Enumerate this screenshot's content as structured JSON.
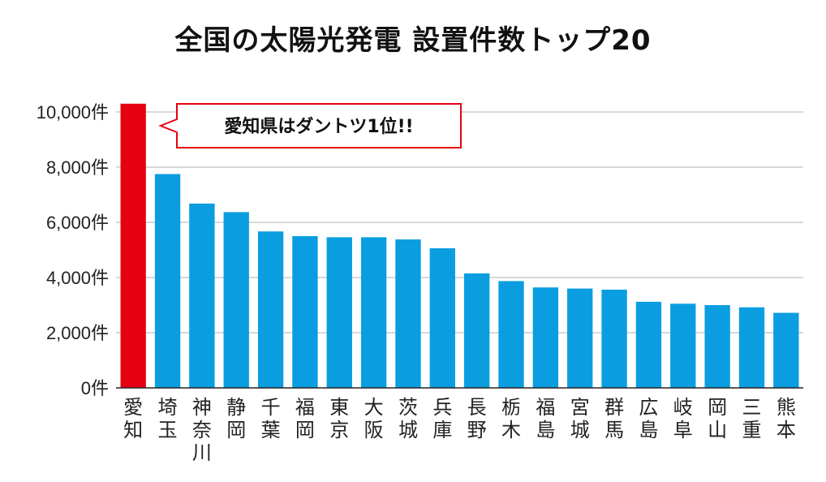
{
  "chart_data": {
    "type": "bar",
    "title": "全国の太陽光発電 設置件数トップ20",
    "xlabel": "",
    "ylabel": "",
    "ylim": [
      0,
      10000
    ],
    "yticks": [
      {
        "value": 0,
        "label": "0件"
      },
      {
        "value": 2000,
        "label": "2,000件"
      },
      {
        "value": 4000,
        "label": "4,000件"
      },
      {
        "value": 6000,
        "label": "6,000件"
      },
      {
        "value": 8000,
        "label": "8,000件"
      },
      {
        "value": 10000,
        "label": "10,000件"
      }
    ],
    "grid": true,
    "categories": [
      "愛知",
      "埼玉",
      "神奈川",
      "静岡",
      "千葉",
      "福岡",
      "東京",
      "大阪",
      "茨城",
      "兵庫",
      "長野",
      "栃木",
      "福島",
      "宮城",
      "群馬",
      "広島",
      "岐阜",
      "岡山",
      "三重",
      "熊本"
    ],
    "values": [
      10300,
      7750,
      6680,
      6370,
      5670,
      5500,
      5460,
      5460,
      5380,
      5060,
      4150,
      3870,
      3640,
      3600,
      3560,
      3120,
      3050,
      3000,
      2920,
      2720
    ],
    "highlight_index": 0,
    "colors": {
      "highlight": "#e60012",
      "default": "#0a9ee0",
      "grid": "#b0b0b0",
      "callout_border": "#e60012"
    },
    "annotation": "愛知県はダントツ1位!!"
  }
}
